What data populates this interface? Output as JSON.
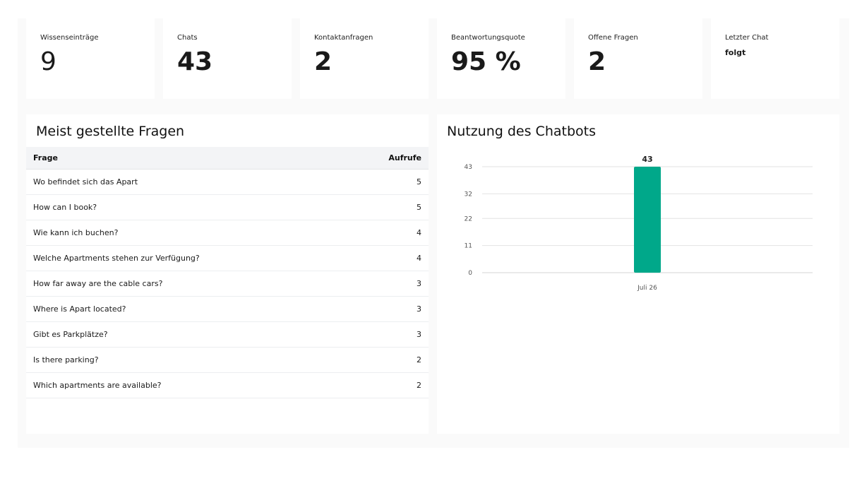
{
  "stats": [
    {
      "label": "Wissenseinträge",
      "value": "9"
    },
    {
      "label": "Chats",
      "value": "43"
    },
    {
      "label": "Kontaktanfragen",
      "value": "2"
    },
    {
      "label": "Beantwortungsquote",
      "value": "95 %"
    },
    {
      "label": "Offene Fragen",
      "value": "2"
    },
    {
      "label": "Letzter Chat",
      "value": "folgt"
    }
  ],
  "faq": {
    "title": "Meist gestellte Fragen",
    "columns": {
      "question": "Frage",
      "count": "Aufrufe"
    },
    "rows": [
      {
        "question": "Wo befindet sich das Apart",
        "count": "5"
      },
      {
        "question": "How can I book?",
        "count": "5"
      },
      {
        "question": "Wie kann ich buchen?",
        "count": "4"
      },
      {
        "question": "Welche Apartments stehen zur Verfügung?",
        "count": "4"
      },
      {
        "question": "How far away are the cable cars?",
        "count": "3"
      },
      {
        "question": "Where is Apart  located?",
        "count": "3"
      },
      {
        "question": "Gibt es Parkplätze?",
        "count": "3"
      },
      {
        "question": "Is there parking?",
        "count": "2"
      },
      {
        "question": "Which apartments are available?",
        "count": "2"
      }
    ]
  },
  "usage": {
    "title": "Nutzung des Chatbots"
  },
  "chart_data": {
    "type": "bar",
    "categories": [
      "Juli 26"
    ],
    "values": [
      43
    ],
    "yticks": [
      0,
      11,
      22,
      32,
      43
    ],
    "ylim": [
      0,
      43
    ],
    "title": "",
    "xlabel": "",
    "ylabel": "",
    "grid": true,
    "bar_color": "#00a88a",
    "data_labels": true
  }
}
